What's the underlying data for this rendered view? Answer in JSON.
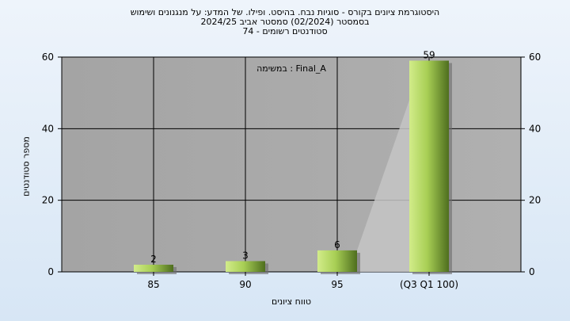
{
  "chart_data": {
    "type": "bar",
    "title_lines": [
      "היסטוגרמת ציונים בקורס - סוגיות נבח. בהיסט. ופילו. של המדע: על מנגנונים ושימוש",
      "בסמסטר  (02/2024)  סמסטר אביב 2024/25",
      "סטודנטים רשומים - 74"
    ],
    "annotation": "במשימה : Final_A",
    "xlabel": "טווח ציונים",
    "ylabel": "מספר סטודנטים",
    "categories": [
      "85",
      "90",
      "95",
      "(Q3 Q1 100)"
    ],
    "values": [
      2,
      3,
      6,
      59
    ],
    "data_labels": [
      "2",
      "3",
      "6",
      "59"
    ],
    "ylim": [
      0,
      60
    ],
    "yticks": [
      0,
      20,
      40,
      60
    ],
    "grid": true,
    "colors": {
      "plot_bg": "#a9a9a9",
      "bar_light": "#c8e67a",
      "bar_dark": "#4e6e1e",
      "grid": "#000000"
    }
  }
}
